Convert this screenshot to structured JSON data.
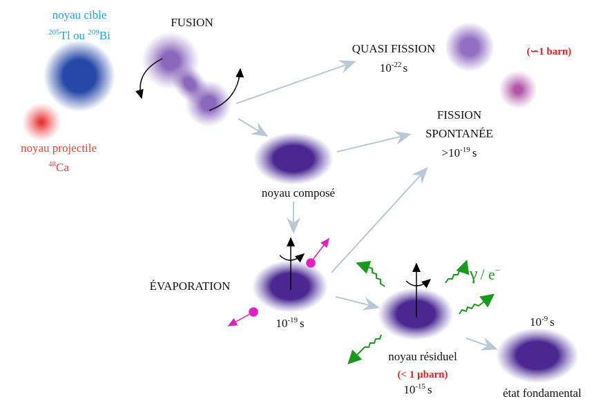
{
  "target": {
    "label": "noyau cible",
    "iso1_mass": "205",
    "iso1_el": "Tl ou ",
    "iso2_mass": "209",
    "iso2_el": "Bi"
  },
  "projectile": {
    "label": "noyau projectile",
    "mass": "48",
    "el": "Ca"
  },
  "fusion": {
    "label": "FUSION"
  },
  "quasi_fission": {
    "label": "QUASI FISSION",
    "time_base": "10",
    "time_exp": "-22",
    "time_unit": "s",
    "cross_section": "(∽1 barn)"
  },
  "fission": {
    "line1": "FISSION",
    "line2": "SPONTANÉE",
    "time_base": ">10",
    "time_exp": "-19",
    "time_unit": "s"
  },
  "compound": {
    "label": "noyau composé"
  },
  "evaporation": {
    "label": "ÉVAPORATION",
    "time_base": "10",
    "time_exp": "-19",
    "time_unit": "s"
  },
  "emission": {
    "gamma": "γ",
    "sep": "/ e",
    "sup": "−"
  },
  "residual": {
    "label": "noyau résiduel",
    "cross_section": "(< 1 µbarn)",
    "time_base": "10",
    "time_exp": "-15",
    "time_unit": "s"
  },
  "ground": {
    "time_base": "10",
    "time_exp": "-9",
    "time_unit": "s",
    "label": "état fondamental"
  }
}
